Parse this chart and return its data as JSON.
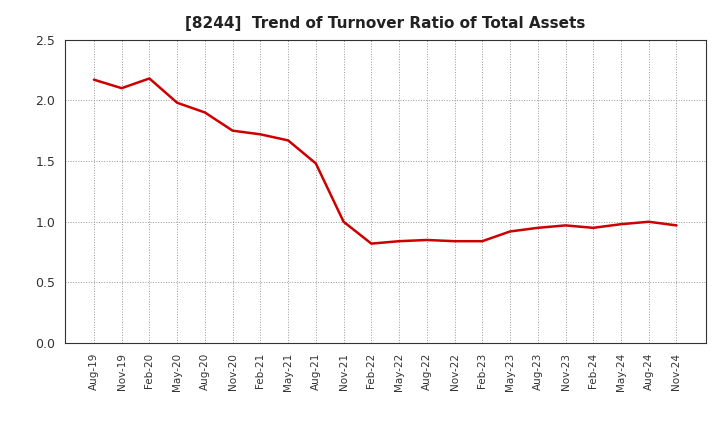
{
  "title": "[8244]  Trend of Turnover Ratio of Total Assets",
  "title_fontsize": 11,
  "line_color": "#cc0000",
  "line_width": 1.8,
  "background_color": "#ffffff",
  "plot_bg_color": "#ffffff",
  "grid_color": "#999999",
  "ylim": [
    0.0,
    2.5
  ],
  "yticks": [
    0.0,
    0.5,
    1.0,
    1.5,
    2.0,
    2.5
  ],
  "x_labels": [
    "Aug-19",
    "Nov-19",
    "Feb-20",
    "May-20",
    "Aug-20",
    "Nov-20",
    "Feb-21",
    "May-21",
    "Aug-21",
    "Nov-21",
    "Feb-22",
    "May-22",
    "Aug-22",
    "Nov-22",
    "Feb-23",
    "May-23",
    "Aug-23",
    "Nov-23",
    "Feb-24",
    "May-24",
    "Aug-24",
    "Nov-24"
  ],
  "y_values": [
    2.17,
    2.1,
    2.18,
    1.98,
    1.9,
    1.75,
    1.72,
    1.67,
    1.48,
    1.0,
    0.82,
    0.84,
    0.85,
    0.84,
    0.84,
    0.92,
    0.95,
    0.97,
    0.95,
    0.98,
    1.0,
    0.97
  ]
}
